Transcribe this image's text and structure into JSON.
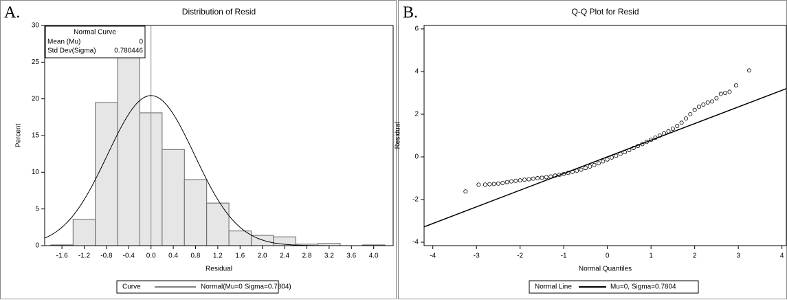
{
  "chart_data": [
    {
      "type": "histogram",
      "panel_label": "A.",
      "title": "Distribution of Resid",
      "xlabel": "Residual",
      "ylabel": "Percent",
      "bins": [
        -1.8,
        -1.4,
        -1.0,
        -0.6,
        -0.2,
        0.2,
        0.6,
        1.0,
        1.4,
        1.8,
        2.2,
        2.6,
        3.0,
        3.4,
        3.8,
        4.2
      ],
      "values": [
        0.1,
        3.6,
        19.5,
        25.7,
        18.1,
        13.1,
        9.0,
        5.8,
        2.0,
        1.4,
        1.2,
        0.2,
        0.3,
        0,
        0.1
      ],
      "color": "#e6e6e6",
      "xlim": [
        -1.91,
        4.35
      ],
      "xticks": [
        -1.6,
        -1.2,
        -0.8,
        -0.4,
        {
          "value": 0,
          "label": "0.0"
        },
        0.4,
        0.8,
        1.2,
        1.6,
        {
          "value": 2,
          "label": "2.0"
        },
        2.4,
        2.8,
        3.2,
        3.6,
        {
          "value": 4,
          "label": "4.0"
        }
      ],
      "ylim": [
        0,
        30
      ],
      "yticks": [
        0,
        5,
        10,
        15,
        20,
        25,
        30
      ],
      "inset": {
        "title": "Normal Curve",
        "rows": [
          {
            "label": "Mean (Mu)",
            "value": 0
          },
          {
            "label": "Std Dev(Sigma)",
            "value": 0.780446
          }
        ]
      },
      "legend": {
        "title": "Curve",
        "label": "Normal(Mu=0 Sigma=0.7804)"
      }
    },
    {
      "type": "scatter",
      "panel_label": "B.",
      "title": "Q-Q Plot for Resid",
      "xlabel": "Normal Quantiles",
      "ylabel": "Residual",
      "x": [
        -3.25,
        -2.95,
        -2.8,
        -2.7,
        -2.6,
        -2.5,
        -2.4,
        -2.3,
        -2.2,
        -2.1,
        -2.0,
        -1.9,
        -1.8,
        -1.7,
        -1.6,
        -1.5,
        -1.4,
        -1.3,
        -1.2,
        -1.1,
        -1.0,
        -0.9,
        -0.8,
        -0.7,
        -0.6,
        -0.5,
        -0.4,
        -0.3,
        -0.2,
        -0.1,
        0,
        0.1,
        0.2,
        0.3,
        0.4,
        0.5,
        0.6,
        0.7,
        0.8,
        0.9,
        1.0,
        1.1,
        1.2,
        1.3,
        1.4,
        1.5,
        1.6,
        1.7,
        1.8,
        1.9,
        2.0,
        2.1,
        2.2,
        2.3,
        2.4,
        2.5,
        2.6,
        2.7,
        2.8,
        2.95,
        3.25
      ],
      "y": [
        -1.62,
        -1.3,
        -1.3,
        -1.28,
        -1.27,
        -1.25,
        -1.22,
        -1.18,
        -1.15,
        -1.12,
        -1.1,
        -1.07,
        -1.05,
        -1.02,
        -1.0,
        -0.98,
        -0.95,
        -0.92,
        -0.88,
        -0.84,
        -0.8,
        -0.75,
        -0.7,
        -0.65,
        -0.6,
        -0.52,
        -0.45,
        -0.38,
        -0.3,
        -0.21,
        -0.12,
        -0.03,
        0.05,
        0.14,
        0.22,
        0.32,
        0.42,
        0.51,
        0.6,
        0.7,
        0.8,
        0.9,
        1.0,
        1.1,
        1.2,
        1.32,
        1.45,
        1.6,
        1.8,
        2.0,
        2.2,
        2.35,
        2.45,
        2.55,
        2.6,
        2.75,
        2.95,
        3.0,
        3.05,
        3.35,
        4.05
      ],
      "xlim": [
        -4.2,
        4.1
      ],
      "xticks": [
        -4,
        -3,
        -2,
        -1,
        0,
        1,
        2,
        3,
        4
      ],
      "ylim": [
        -4.16,
        6.16
      ],
      "yticks": [
        -4,
        -2,
        0,
        2,
        4,
        6
      ],
      "reference_line": {
        "mu": 0,
        "sigma": 0.7804
      },
      "legend": {
        "title": "Normal Line",
        "label": "Mu=0, Sigma=0.7804"
      }
    }
  ]
}
